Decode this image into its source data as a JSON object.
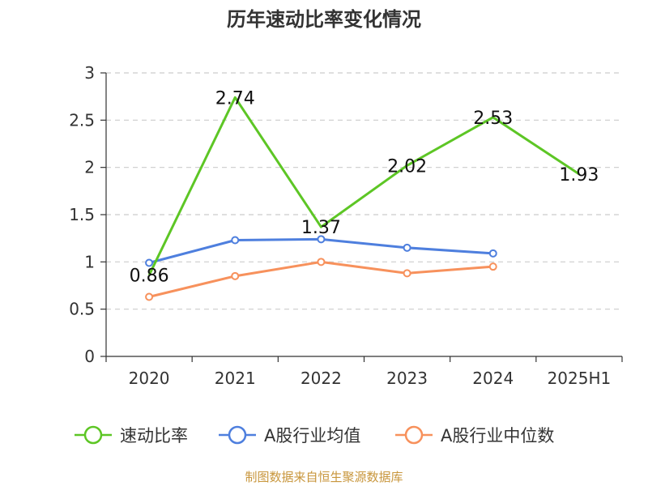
{
  "chart_data": {
    "type": "line",
    "title": "历年速动比率变化情况",
    "categories": [
      "2020",
      "2021",
      "2022",
      "2023",
      "2024",
      "2025H1"
    ],
    "ylim": [
      0,
      3
    ],
    "yticks": [
      "0",
      "0.5",
      "1",
      "1.5",
      "2",
      "2.5",
      "3"
    ],
    "grid": true,
    "legend_position": "bottom",
    "series": [
      {
        "name": "速动比率",
        "color": "#5dc625",
        "values": [
          0.86,
          2.74,
          1.37,
          2.02,
          2.53,
          1.93
        ],
        "labels": [
          "0.86",
          "2.74",
          "1.37",
          "2.02",
          "2.53",
          "1.93"
        ]
      },
      {
        "name": "A股行业均值",
        "color": "#4e7fde",
        "values": [
          0.99,
          1.23,
          1.24,
          1.15,
          1.09,
          null
        ]
      },
      {
        "name": "A股行业中位数",
        "color": "#f7915c",
        "values": [
          0.63,
          0.85,
          1.0,
          0.88,
          0.95,
          null
        ]
      }
    ],
    "source": "制图数据来自恒生聚源数据库"
  }
}
